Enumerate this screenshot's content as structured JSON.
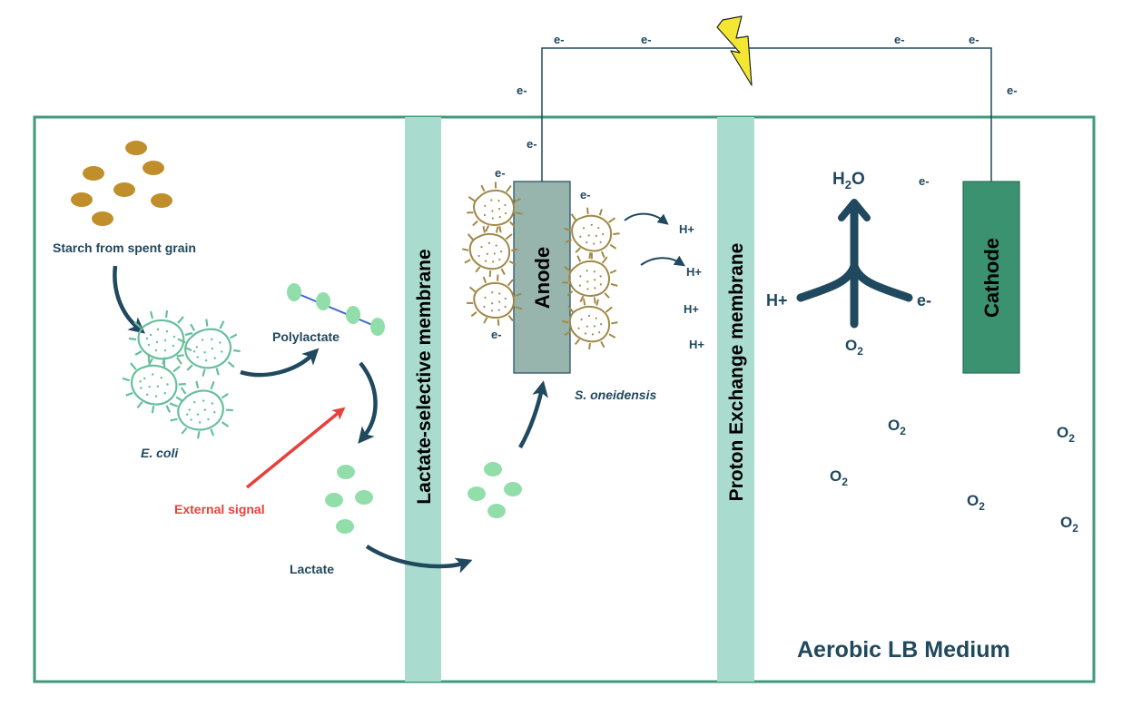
{
  "colors": {
    "frame": "#3f9a78",
    "membrane": "#a9dccf",
    "text": "#20485e",
    "starch": "#c08e2b",
    "lactate": "#92deaa",
    "ecoli_outline": "#67bf9c",
    "shewanella_outline": "#a08948",
    "anode": "#98b5ad",
    "cathode": "#3b9271",
    "signal": "#e8403a",
    "lightning": "#f4e733"
  },
  "labels": {
    "starch": "Starch from spent grain",
    "ecoli": "E. coli",
    "polylactate": "Polylactate",
    "external_signal": "External signal",
    "lactate": "Lactate",
    "lactate_membrane": "Lactate-selective membrane",
    "anode": "Anode",
    "s_oneidensis": "S. oneidensis",
    "pem": "Proton Exchange membrane",
    "cathode": "Cathode",
    "medium": "Aerobic LB Medium",
    "electron": "e-",
    "proton": "H+",
    "water_h": "H",
    "water_sub": "2",
    "water_o": "O",
    "oxygen": "O",
    "oxygen_sub": "2"
  },
  "icons": {
    "lightning": "lightning-bolt-icon",
    "starch_granule": "starch-granule-icon",
    "bacterium": "bacterium-icon"
  }
}
